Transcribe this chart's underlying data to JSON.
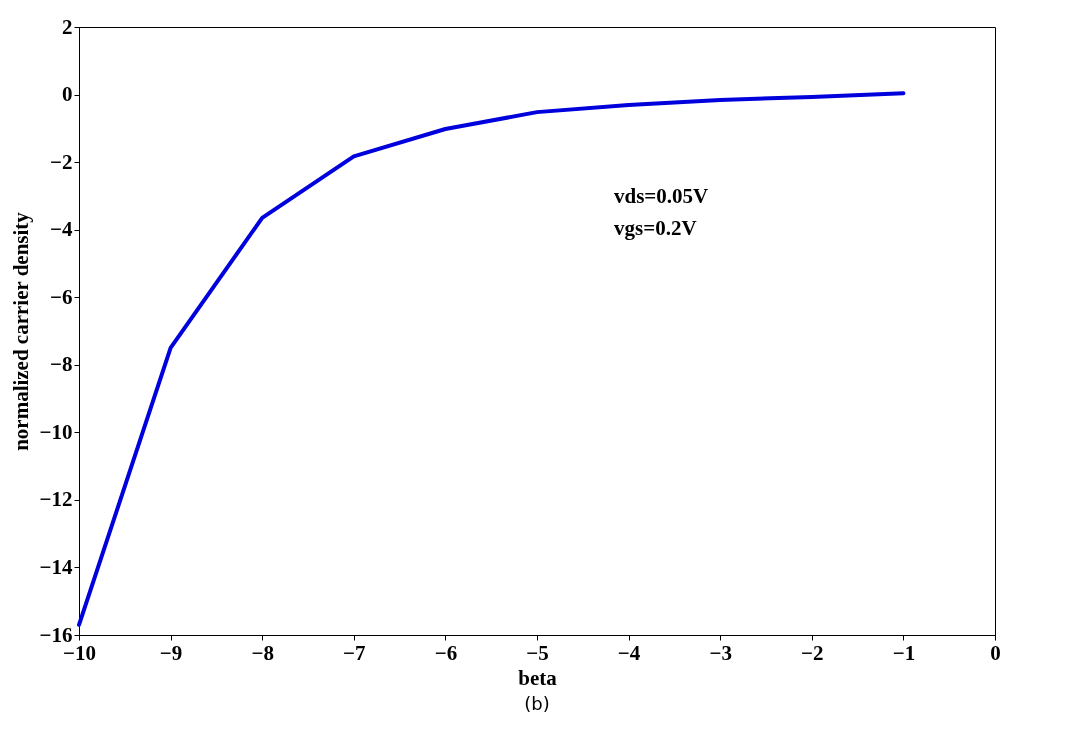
{
  "chart_data": {
    "type": "line",
    "xlabel": "beta",
    "ylabel": "normalized carrier density",
    "x": [
      -10,
      -9,
      -8,
      -7,
      -6,
      -5,
      -4,
      -3,
      -2,
      -1
    ],
    "series": [
      {
        "color": "#0000dd",
        "values": [
          -15.7,
          -7.5,
          -3.65,
          -1.83,
          -1.02,
          -0.52,
          -0.31,
          -0.16,
          -0.07,
          0.04
        ]
      }
    ],
    "xlim": [
      -10,
      0
    ],
    "xticks": [
      -10,
      -9,
      -8,
      -7,
      -6,
      -5,
      -4,
      -3,
      -2,
      -1,
      0
    ],
    "ylim": [
      -16,
      2
    ],
    "yticks": [
      -16,
      -14,
      -12,
      -10,
      -8,
      -6,
      -4,
      -2,
      0,
      2
    ],
    "grid": false,
    "marker": "none",
    "line_style": "solid",
    "annotations": [
      "vds=0.05V",
      "vgs=0.2V",
      "(b)"
    ]
  }
}
